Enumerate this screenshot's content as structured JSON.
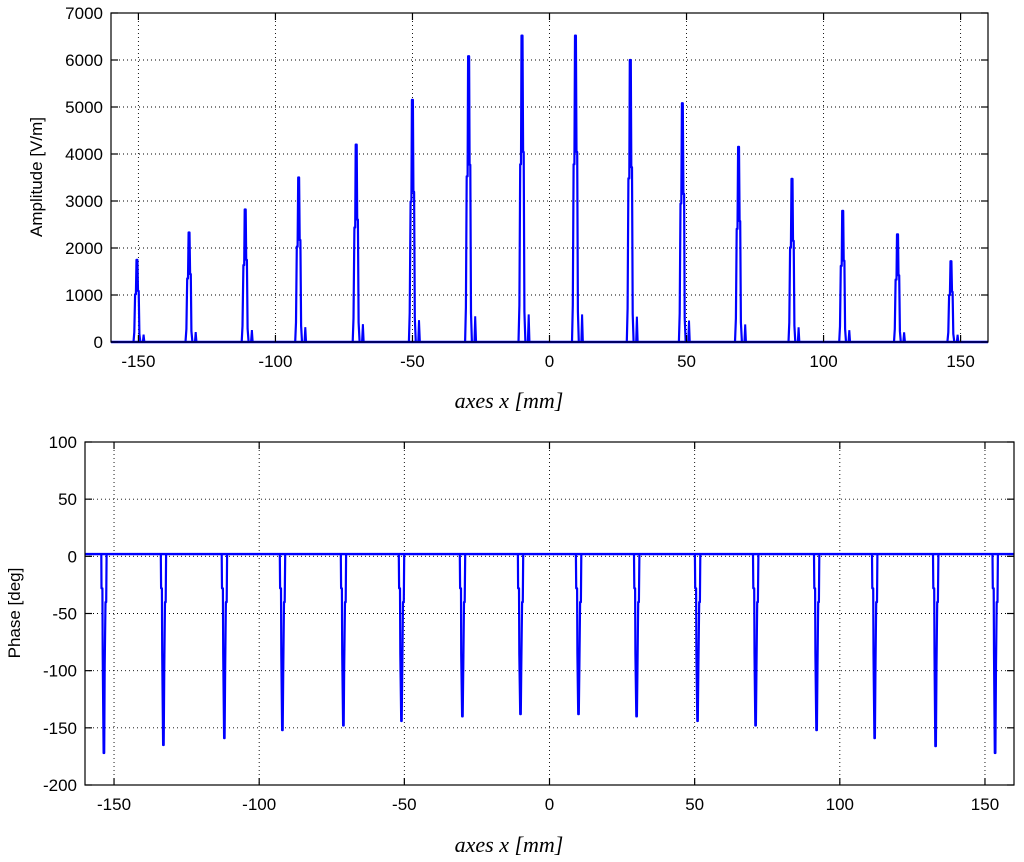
{
  "chart_data": [
    {
      "type": "line",
      "title": "",
      "xlabel": "axes x [mm]",
      "ylabel": "Amplitude [V/m]",
      "xlim": [
        -160,
        160
      ],
      "ylim": [
        0,
        7000
      ],
      "xticks": [
        -150,
        -100,
        -50,
        0,
        50,
        100,
        150
      ],
      "yticks": [
        0,
        1000,
        2000,
        3000,
        4000,
        5000,
        6000,
        7000
      ],
      "grid": true,
      "series_color": "#0000ff",
      "series": [
        {
          "peaks": [
            {
              "x": -150.5,
              "y": 1750
            },
            {
              "x": -131.5,
              "y": 2330
            },
            {
              "x": -111,
              "y": 2820
            },
            {
              "x": -91.5,
              "y": 3500
            },
            {
              "x": -70.5,
              "y": 4200
            },
            {
              "x": -50,
              "y": 5150
            },
            {
              "x": -29.5,
              "y": 6080
            },
            {
              "x": -10,
              "y": 6520
            },
            {
              "x": 9.5,
              "y": 6520
            },
            {
              "x": 29.5,
              "y": 6000
            },
            {
              "x": 48.5,
              "y": 5080
            },
            {
              "x": 69,
              "y": 4150
            },
            {
              "x": 88.5,
              "y": 3470
            },
            {
              "x": 107,
              "y": 2790
            },
            {
              "x": 127,
              "y": 2290
            },
            {
              "x": 146.5,
              "y": 1720
            }
          ]
        }
      ]
    },
    {
      "type": "line",
      "title": "",
      "xlabel": "axes x [mm]",
      "ylabel": "Phase [deg]",
      "xlim": [
        -160,
        160
      ],
      "ylim": [
        -200,
        100
      ],
      "xticks": [
        -150,
        -100,
        -50,
        0,
        50,
        100,
        150
      ],
      "yticks": [
        -200,
        -150,
        -100,
        -50,
        0,
        50,
        100
      ],
      "grid": true,
      "series_color": "#0000ff",
      "baseline": 2,
      "series": [
        {
          "dips": [
            {
              "x": -153.5,
              "y": -172
            },
            {
              "x": -133,
              "y": -165
            },
            {
              "x": -112,
              "y": -159
            },
            {
              "x": -92,
              "y": -152
            },
            {
              "x": -71,
              "y": -148
            },
            {
              "x": -51,
              "y": -144
            },
            {
              "x": -30,
              "y": -140
            },
            {
              "x": -10,
              "y": -138
            },
            {
              "x": 10,
              "y": -138
            },
            {
              "x": 30,
              "y": -140
            },
            {
              "x": 51,
              "y": -144
            },
            {
              "x": 71,
              "y": -148
            },
            {
              "x": 92,
              "y": -152
            },
            {
              "x": 112,
              "y": -159
            },
            {
              "x": 133,
              "y": -166
            },
            {
              "x": 153.5,
              "y": -172
            }
          ]
        }
      ]
    }
  ]
}
